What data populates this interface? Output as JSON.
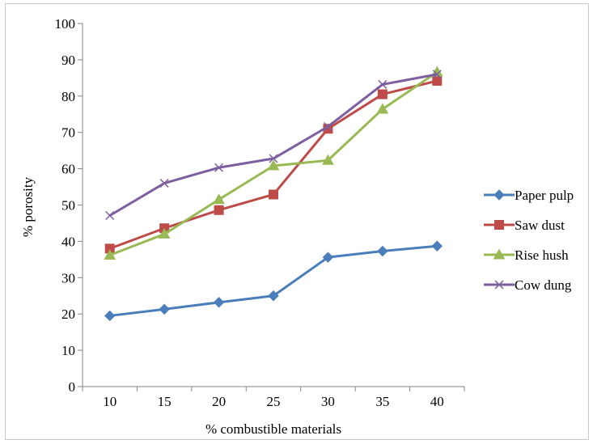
{
  "chart_data": {
    "type": "line",
    "title": "",
    "xlabel": "% combustible materials",
    "ylabel": "% porosity",
    "categories": [
      "10",
      "15",
      "20",
      "25",
      "30",
      "35",
      "40"
    ],
    "ylim": [
      0,
      100
    ],
    "yticks": [
      0,
      10,
      20,
      30,
      40,
      50,
      60,
      70,
      80,
      90,
      100
    ],
    "grid": false,
    "legend_position": "right",
    "series": [
      {
        "name": "Paper pulp",
        "color": "#4a7ebb",
        "marker": "diamond",
        "values": [
          19.5,
          21.3,
          23.2,
          25.0,
          35.6,
          37.3,
          38.7
        ]
      },
      {
        "name": "Saw dust",
        "color": "#be4b48",
        "marker": "square",
        "values": [
          38.0,
          43.6,
          48.6,
          52.9,
          71.0,
          80.5,
          84.2
        ]
      },
      {
        "name": "Rise hush",
        "color": "#98b954",
        "marker": "triangle",
        "values": [
          36.2,
          42.0,
          51.5,
          60.8,
          62.3,
          76.4,
          86.6
        ]
      },
      {
        "name": "Cow dung",
        "color": "#7d5fa0",
        "marker": "x",
        "values": [
          47.1,
          56.0,
          60.3,
          62.8,
          71.6,
          83.2,
          86.0
        ]
      }
    ]
  }
}
